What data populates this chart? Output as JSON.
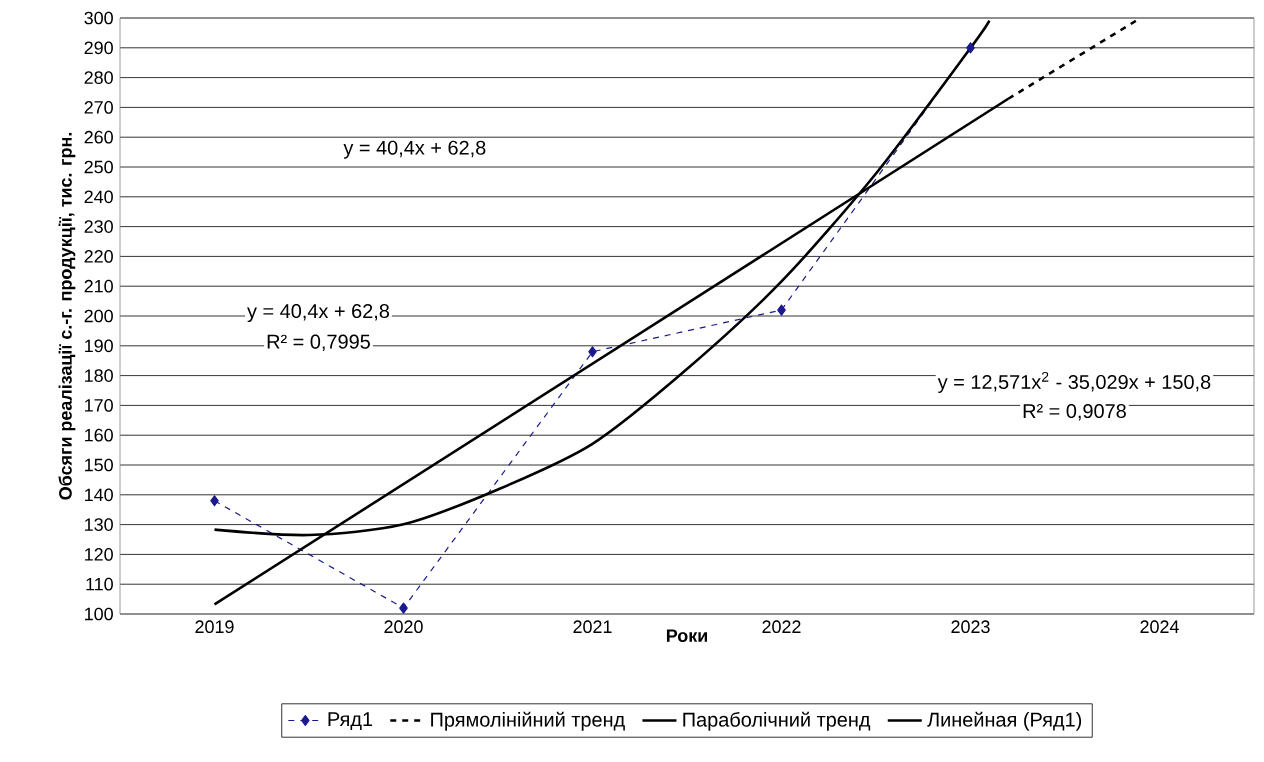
{
  "chart_data": {
    "type": "line",
    "xlabel": "Роки",
    "ylabel": "Обсяги реалізації с.-г. продукції, тис. грн.",
    "x": [
      2019,
      2020,
      2021,
      2022,
      2023
    ],
    "xlim": [
      2018.5,
      2024.5
    ],
    "xticks": [
      2019,
      2020,
      2021,
      2022,
      2023,
      2024
    ],
    "ylim": [
      100,
      300
    ],
    "yticks": [
      100,
      110,
      120,
      130,
      140,
      150,
      160,
      170,
      180,
      190,
      200,
      210,
      220,
      230,
      240,
      250,
      260,
      270,
      280,
      290,
      300
    ],
    "grid": "y",
    "legend": "bottom",
    "series": [
      {
        "name": "Ряд1",
        "color": "#1a1a8c",
        "values": [
          138,
          102,
          188,
          202,
          290
        ],
        "marker": "diamond",
        "line_style": "dashed"
      },
      {
        "name": "Прямолінійний тренд",
        "color": "#000000",
        "x": [
          2023.2,
          2023.9
        ],
        "values": [
          272.9,
          300
        ],
        "marker": "none",
        "line_style": "dashed"
      },
      {
        "name": "Параболічний тренд",
        "color": "#000000",
        "x": [
          2019,
          2019.5,
          2020,
          2020.5,
          2021,
          2021.5,
          2022,
          2022.5,
          2023,
          2023.1
        ],
        "values": [
          128.3,
          126.5,
          130.1,
          141.8,
          157.1,
          182.2,
          211.6,
          247.8,
          289.9,
          299.1
        ],
        "marker": "none",
        "line_style": "solid"
      },
      {
        "name": "Линейная (Ряд1)",
        "color": "#000000",
        "x": [
          2019,
          2023.2
        ],
        "values": [
          103.2,
          272.9
        ],
        "marker": "none",
        "line_style": "solid"
      }
    ],
    "annotations": [
      "y = 40,4x + 62,8",
      "y = 40,4x + 62,8",
      "R² = 0,7995",
      "y = 12,571x$^{2}$ - 35,029x + 150,8",
      "R² = 0,9078"
    ]
  }
}
